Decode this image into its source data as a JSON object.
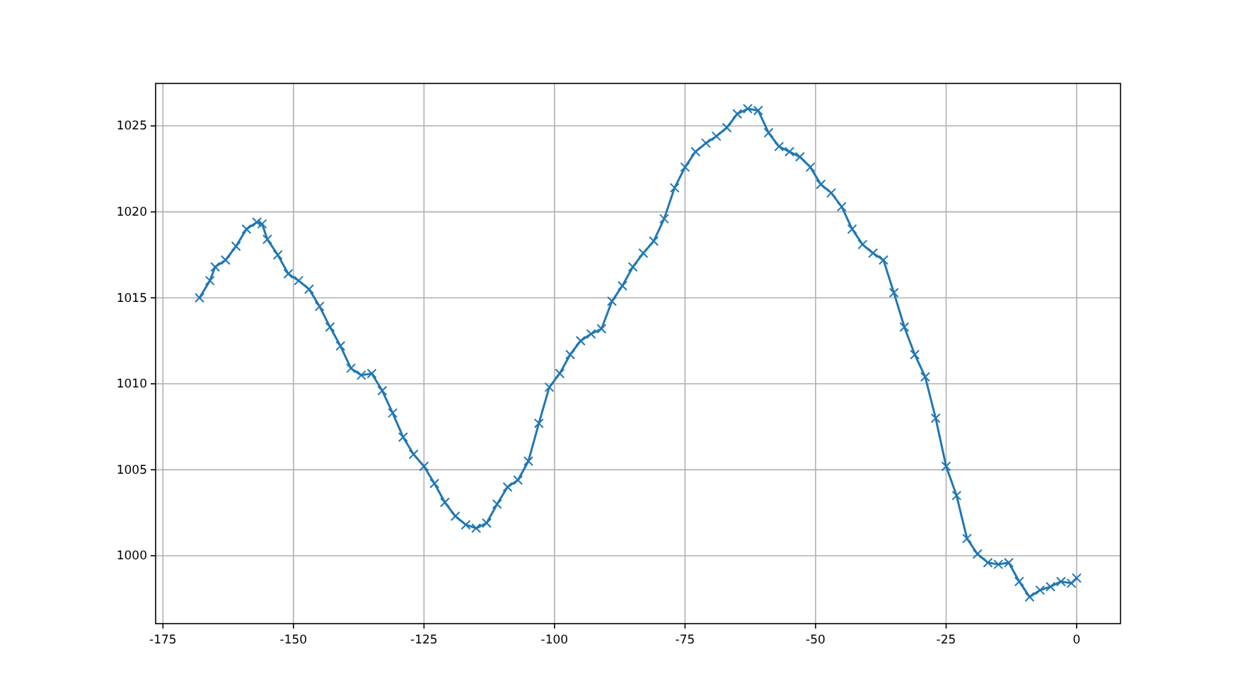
{
  "chart_data": {
    "type": "line",
    "marker": "cross",
    "grid": true,
    "x": [
      -168,
      -166,
      -165,
      -163,
      -161,
      -159,
      -157,
      -156,
      -155,
      -153,
      -151,
      -149,
      -147,
      -145,
      -143,
      -141,
      -139,
      -137,
      -135,
      -133,
      -131,
      -129,
      -127,
      -125,
      -123,
      -121,
      -119,
      -117,
      -115,
      -113,
      -111,
      -109,
      -107,
      -105,
      -103,
      -101,
      -99,
      -97,
      -95,
      -93,
      -91,
      -89,
      -87,
      -85,
      -83,
      -81,
      -79,
      -77,
      -75,
      -73,
      -71,
      -69,
      -67,
      -65,
      -63,
      -61,
      -59,
      -57,
      -55,
      -53,
      -51,
      -49,
      -47,
      -45,
      -43,
      -41,
      -39,
      -37,
      -35,
      -33,
      -31,
      -29,
      -27,
      -25,
      -23,
      -21,
      -19,
      -17,
      -15,
      -13,
      -11,
      -9,
      -7,
      -5,
      -3,
      -1,
      0
    ],
    "series": [
      {
        "color": "#1f77b4",
        "values": [
          1015.0,
          1016.0,
          1016.8,
          1017.2,
          1018.0,
          1019.0,
          1019.4,
          1019.3,
          1018.4,
          1017.5,
          1016.4,
          1016.0,
          1015.5,
          1014.5,
          1013.3,
          1012.2,
          1010.9,
          1010.5,
          1010.6,
          1009.6,
          1008.3,
          1006.9,
          1005.9,
          1005.2,
          1004.2,
          1003.1,
          1002.3,
          1001.8,
          1001.6,
          1001.9,
          1003.0,
          1004.0,
          1004.4,
          1005.5,
          1007.7,
          1009.8,
          1010.6,
          1011.7,
          1012.5,
          1012.9,
          1013.2,
          1014.8,
          1015.7,
          1016.8,
          1017.6,
          1018.3,
          1019.6,
          1021.4,
          1022.6,
          1023.5,
          1024.0,
          1024.4,
          1024.9,
          1025.7,
          1026.0,
          1025.9,
          1024.6,
          1023.8,
          1023.5,
          1023.2,
          1022.6,
          1021.6,
          1021.1,
          1020.3,
          1019.0,
          1018.1,
          1017.6,
          1017.2,
          1015.3,
          1013.3,
          1011.7,
          1010.4,
          1008.0,
          1005.2,
          1003.5,
          1001.0,
          1000.1,
          999.6,
          999.5,
          999.6,
          998.5,
          997.6,
          998.0,
          998.2,
          998.5,
          998.4,
          998.7
        ]
      }
    ],
    "xlim": [
      -176.4,
      8.4
    ],
    "xticks": [
      -175,
      -150,
      -125,
      -100,
      -75,
      -50,
      -25,
      0
    ],
    "ylim": [
      996.05,
      1027.47
    ],
    "yticks": [
      1000,
      1005,
      1010,
      1015,
      1020,
      1025
    ]
  }
}
